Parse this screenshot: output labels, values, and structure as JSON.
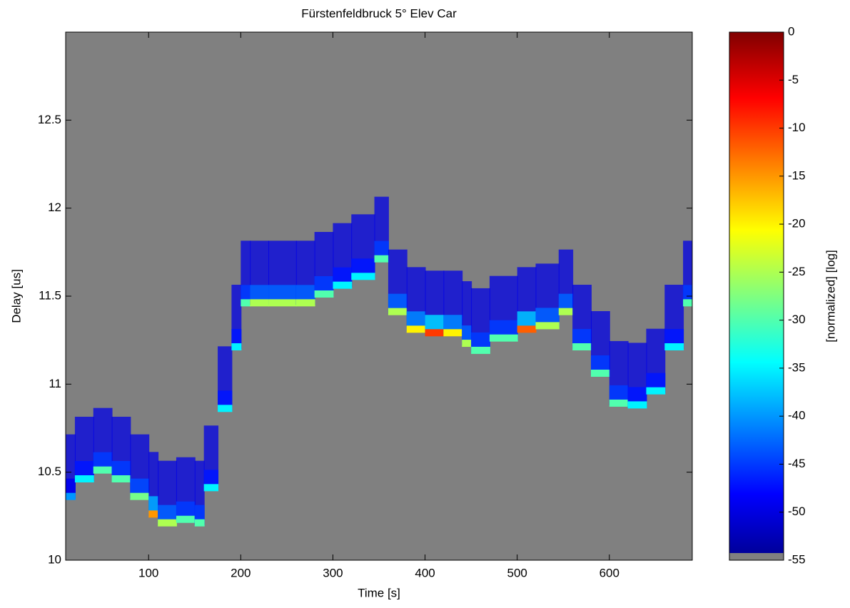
{
  "chart_data": {
    "type": "heatmap",
    "title": "Fürstenfeldbruck 5° Elev Car",
    "xlabel": "Time [s]",
    "ylabel": "Delay [us]",
    "clabel": "[normalized] [log]",
    "colormap": "jet",
    "background": "#808080",
    "xlim": [
      10,
      690
    ],
    "xticks": [
      100,
      200,
      300,
      400,
      500,
      600
    ],
    "ylim": [
      10,
      13
    ],
    "yticks": [
      10,
      10.5,
      11,
      11.5,
      12,
      12.5
    ],
    "clim": [
      -55,
      0
    ],
    "cticks": [
      0,
      -5,
      -10,
      -15,
      -20,
      -25,
      -30,
      -35,
      -40,
      -45,
      -50,
      -55
    ],
    "x": [
      10,
      20,
      40,
      60,
      80,
      100,
      110,
      130,
      150,
      160,
      175,
      190,
      200,
      210,
      230,
      260,
      280,
      300,
      320,
      345,
      360,
      380,
      400,
      420,
      440,
      450,
      470,
      500,
      520,
      545,
      560,
      580,
      600,
      620,
      640,
      660,
      680,
      690
    ],
    "y": [
      10.35,
      10.45,
      10.5,
      10.45,
      10.35,
      10.25,
      10.2,
      10.22,
      10.2,
      10.4,
      10.85,
      11.2,
      11.45,
      11.45,
      11.45,
      11.45,
      11.5,
      11.55,
      11.6,
      11.7,
      11.4,
      11.3,
      11.28,
      11.28,
      11.22,
      11.18,
      11.25,
      11.3,
      11.32,
      11.4,
      11.2,
      11.05,
      10.88,
      10.87,
      10.95,
      11.2,
      11.45,
      11.55
    ],
    "levels": [
      -40,
      -35,
      -30,
      -30,
      -28,
      -15,
      -25,
      -30,
      -30,
      -35,
      -35,
      -35,
      -30,
      -25,
      -25,
      -25,
      -30,
      -35,
      -35,
      -30,
      -25,
      -20,
      -10,
      -20,
      -25,
      -30,
      -30,
      -12,
      -25,
      -25,
      -30,
      -30,
      -30,
      -35,
      -35,
      -35,
      -30,
      -35
    ]
  }
}
